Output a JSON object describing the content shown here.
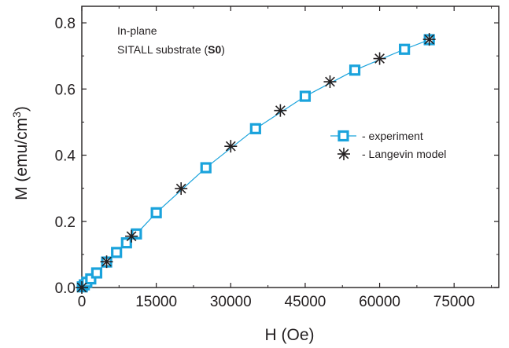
{
  "chart_data": {
    "type": "scatter",
    "xlabel": "H (Oe)",
    "ylabel_main": "M (emu/cm",
    "ylabel_sup": "3",
    "ylabel_close": ")",
    "xlim": [
      0,
      84000
    ],
    "ylim": [
      0,
      0.85
    ],
    "xticks": [
      0,
      15000,
      30000,
      45000,
      60000,
      75000
    ],
    "xtick_labels": [
      "0",
      "15000",
      "30000",
      "45000",
      "60000",
      "75000"
    ],
    "yticks": [
      0.0,
      0.2,
      0.4,
      0.6,
      0.8
    ],
    "ytick_labels": [
      "0.0",
      "0.2",
      "0.4",
      "0.6",
      "0.8"
    ],
    "annotation": {
      "line1": "In-plane",
      "line2_pre": "SITALL substrate (",
      "line2_bold": "S0",
      "line2_post": ")"
    },
    "legend": {
      "position": "right-middle",
      "items": [
        "- experiment",
        "- Langevin model"
      ]
    },
    "colors": {
      "experiment": "#1aa3dc",
      "model": "#231f20",
      "axis": "#231f20"
    },
    "series": [
      {
        "name": "- experiment",
        "marker": "square",
        "line": true,
        "x": [
          100,
          500,
          1000,
          1800,
          3000,
          5000,
          7000,
          9000,
          11000,
          15000,
          25000,
          35000,
          45000,
          55000,
          65000,
          70000
        ],
        "y": [
          0.002,
          0.008,
          0.016,
          0.026,
          0.044,
          0.077,
          0.106,
          0.135,
          0.162,
          0.226,
          0.362,
          0.48,
          0.578,
          0.657,
          0.72,
          0.749
        ]
      },
      {
        "name": "- Langevin model",
        "marker": "asterisk",
        "line": false,
        "x": [
          0,
          5000,
          10000,
          20000,
          30000,
          40000,
          50000,
          60000,
          70000
        ],
        "y": [
          0.0,
          0.078,
          0.155,
          0.299,
          0.427,
          0.535,
          0.622,
          0.692,
          0.75
        ]
      }
    ]
  }
}
